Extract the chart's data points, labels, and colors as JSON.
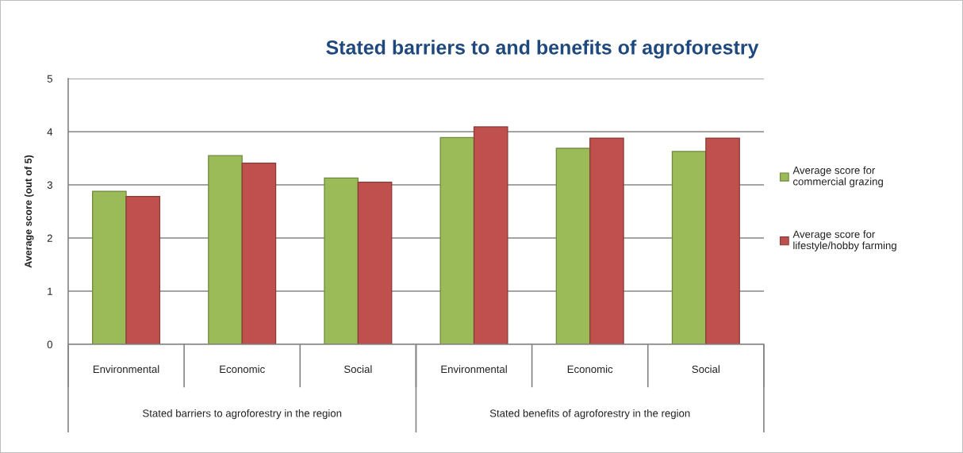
{
  "chart_data": {
    "type": "bar",
    "title": "Stated barriers to and benefits of agroforestry",
    "ylabel": "Average score (out of 5)",
    "categories": [
      "Environmental",
      "Economic",
      "Social",
      "Environmental",
      "Economic",
      "Social"
    ],
    "series": [
      {
        "name": "Average score for\ncommercial grazing",
        "color": "#9bbb59",
        "values": [
          2.88,
          3.55,
          3.13,
          3.89,
          3.69,
          3.63
        ]
      },
      {
        "name": "Average score for\nlifestyle/hobby farming",
        "color": "#c0504d",
        "values": [
          2.78,
          3.41,
          3.05,
          4.09,
          3.88,
          3.88
        ]
      }
    ],
    "ylim": [
      0,
      5
    ],
    "yticks": [
      0,
      1,
      2,
      3,
      4,
      5
    ],
    "grid": "y",
    "legend": "right",
    "annotations": [
      "Stated barriers to agroforestry in the region",
      "Stated benefits of agroforestry in the region"
    ]
  }
}
